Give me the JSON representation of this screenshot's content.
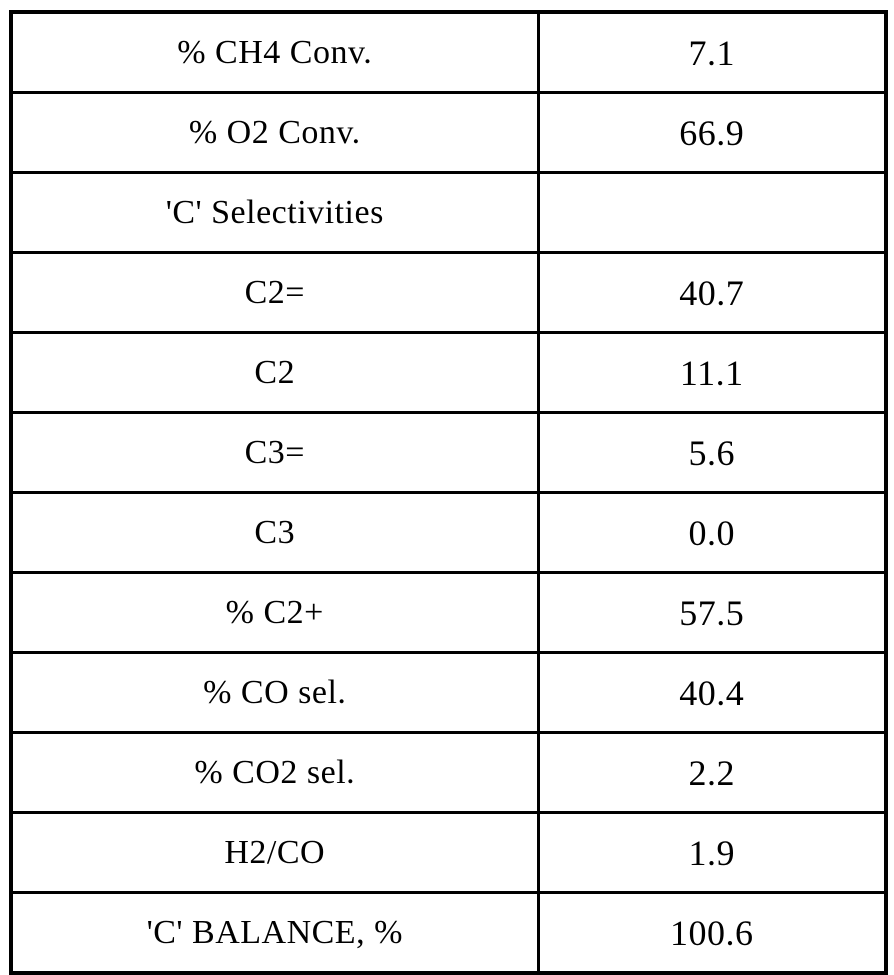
{
  "colors": {
    "border": "#000000",
    "text": "#000000",
    "background": "#ffffff"
  },
  "table": {
    "columns": [
      "parameter",
      "value"
    ],
    "rows": [
      {
        "label": "% CH4 Conv.",
        "value": "7.1"
      },
      {
        "label": "% O2 Conv.",
        "value": "66.9"
      },
      {
        "label": "'C' Selectivities",
        "value": ""
      },
      {
        "label": "C2=",
        "value": "40.7"
      },
      {
        "label": "C2",
        "value": "11.1"
      },
      {
        "label": "C3=",
        "value": "5.6"
      },
      {
        "label": "C3",
        "value": "0.0"
      },
      {
        "label": "% C2+",
        "value": "57.5"
      },
      {
        "label": "% CO sel.",
        "value": "40.4"
      },
      {
        "label": "% CO2 sel.",
        "value": "2.2"
      },
      {
        "label": "H2/CO",
        "value": "1.9"
      },
      {
        "label": "'C' BALANCE, %",
        "value": "100.6"
      }
    ]
  }
}
